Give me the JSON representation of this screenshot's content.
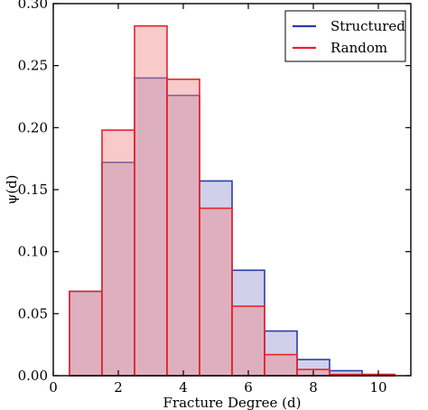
{
  "chart_data": {
    "type": "bar",
    "xlabel": "Fracture Degree (d)",
    "ylabel": "ψ(d)",
    "xlim": [
      0,
      11
    ],
    "ylim": [
      0,
      0.3
    ],
    "x_ticks": [
      0,
      2,
      4,
      6,
      8,
      10
    ],
    "y_ticks": [
      0.0,
      0.05,
      0.1,
      0.15,
      0.2,
      0.25,
      0.3
    ],
    "x_tick_labels": [
      "0",
      "2",
      "4",
      "6",
      "8",
      "10"
    ],
    "y_tick_labels": [
      "0.00",
      "0.05",
      "0.10",
      "0.15",
      "0.20",
      "0.25",
      "0.30"
    ],
    "bin_width": 1,
    "categories": [
      1,
      2,
      3,
      4,
      5,
      6,
      7,
      8,
      9,
      10
    ],
    "series": [
      {
        "name": "Structured",
        "color": "#2a3fa5",
        "fill": "#9696d2",
        "values": [
          0.068,
          0.172,
          0.24,
          0.226,
          0.157,
          0.085,
          0.036,
          0.013,
          0.004,
          0.001
        ]
      },
      {
        "name": "Random",
        "color": "#e8232b",
        "fill": "#f08a8a",
        "values": [
          0.068,
          0.198,
          0.282,
          0.239,
          0.135,
          0.056,
          0.017,
          0.005,
          0.001,
          0.001
        ]
      }
    ],
    "legend": {
      "position": "top-right"
    },
    "grid": false
  }
}
